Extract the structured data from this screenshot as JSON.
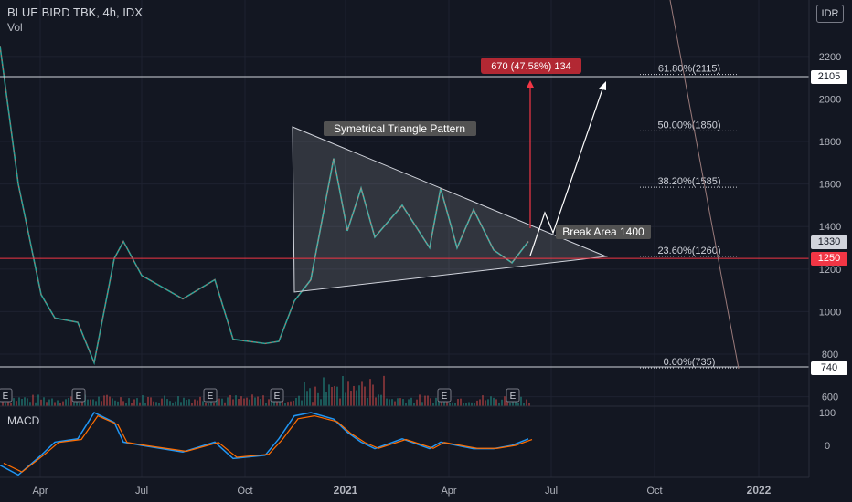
{
  "header": {
    "title": "BLUE BIRD TBK, 4h, IDX",
    "volume_label": "Vol",
    "currency": "IDR",
    "macd_label": "MACD"
  },
  "price_tags": [
    {
      "value": "2105",
      "style": "white"
    },
    {
      "value": "1330",
      "style": "grey"
    },
    {
      "value": "1250",
      "style": "red"
    },
    {
      "value": "740",
      "style": "white"
    }
  ],
  "annotations": {
    "pattern_label": "Symetrical Triangle Pattern",
    "break_label": "Break Area 1400",
    "target_label": "670 (47.58%) 134"
  },
  "earnings_marker": "E",
  "chart_data": {
    "type": "line",
    "title": "BLUE BIRD TBK, 4h, IDX",
    "x_ticks": [
      "Apr",
      "Jul",
      "Oct",
      "2021",
      "Apr",
      "Jul",
      "Oct",
      "2022"
    ],
    "y_ticks": [
      600,
      800,
      1000,
      1200,
      1400,
      1600,
      1800,
      2000,
      2200
    ],
    "macd_ticks": [
      100,
      0
    ],
    "fib_levels": [
      {
        "label": "61.80%(2115)",
        "value": 2115
      },
      {
        "label": "50.00%(1850)",
        "value": 1850
      },
      {
        "label": "38.20%(1585)",
        "value": 1585
      },
      {
        "label": "23.60%(1260)",
        "value": 1260
      },
      {
        "label": "0.00%(735)",
        "value": 735
      }
    ],
    "horizontal_lines": [
      2105,
      1250,
      740
    ],
    "series": [
      {
        "name": "",
        "x": [
          "2020-02",
          "2020-03",
          "2020-03-20",
          "2020-04",
          "2020-05",
          "2020-05-20",
          "2020-06",
          "2020-06-10",
          "2020-07",
          "2020-08",
          "2020-09",
          "2020-10",
          "2020-10-20",
          "2020-11",
          "2020-11-20",
          "2020-12",
          "2020-12-15",
          "2021-01",
          "2021-01-15",
          "2021-02",
          "2021-02-20",
          "2021-03",
          "2021-03-20",
          "2021-04",
          "2021-04-15",
          "2021-05",
          "2021-05-20",
          "2021-06"
        ],
        "values": [
          2250,
          1600,
          1080,
          970,
          950,
          760,
          1250,
          1330,
          1170,
          1060,
          1150,
          870,
          850,
          860,
          1050,
          1150,
          1720,
          1380,
          1580,
          1350,
          1500,
          1300,
          1580,
          1300,
          1480,
          1290,
          1230,
          1330
        ]
      }
    ],
    "macd": [
      -60,
      -90,
      -30,
      10,
      20,
      100,
      70,
      10,
      0,
      -20,
      10,
      -40,
      -30,
      20,
      90,
      100,
      80,
      40,
      10,
      -10,
      20,
      -10,
      10,
      0,
      -10,
      -10,
      0,
      20
    ]
  }
}
